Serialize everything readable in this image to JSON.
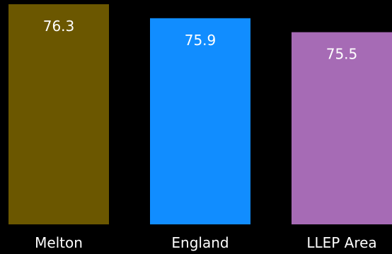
{
  "chart_data": {
    "type": "bar",
    "categories": [
      "Melton",
      "England",
      "LLEP Area"
    ],
    "values": [
      76.3,
      75.9,
      75.5
    ],
    "value_labels": [
      "76.3",
      "75.9",
      "75.5"
    ],
    "colors": [
      "#6b5700",
      "#118dff",
      "#a66bb5"
    ],
    "title": "",
    "xlabel": "",
    "ylabel": "",
    "ylim": [
      0,
      76.3
    ],
    "grid": false,
    "legend": "none"
  }
}
